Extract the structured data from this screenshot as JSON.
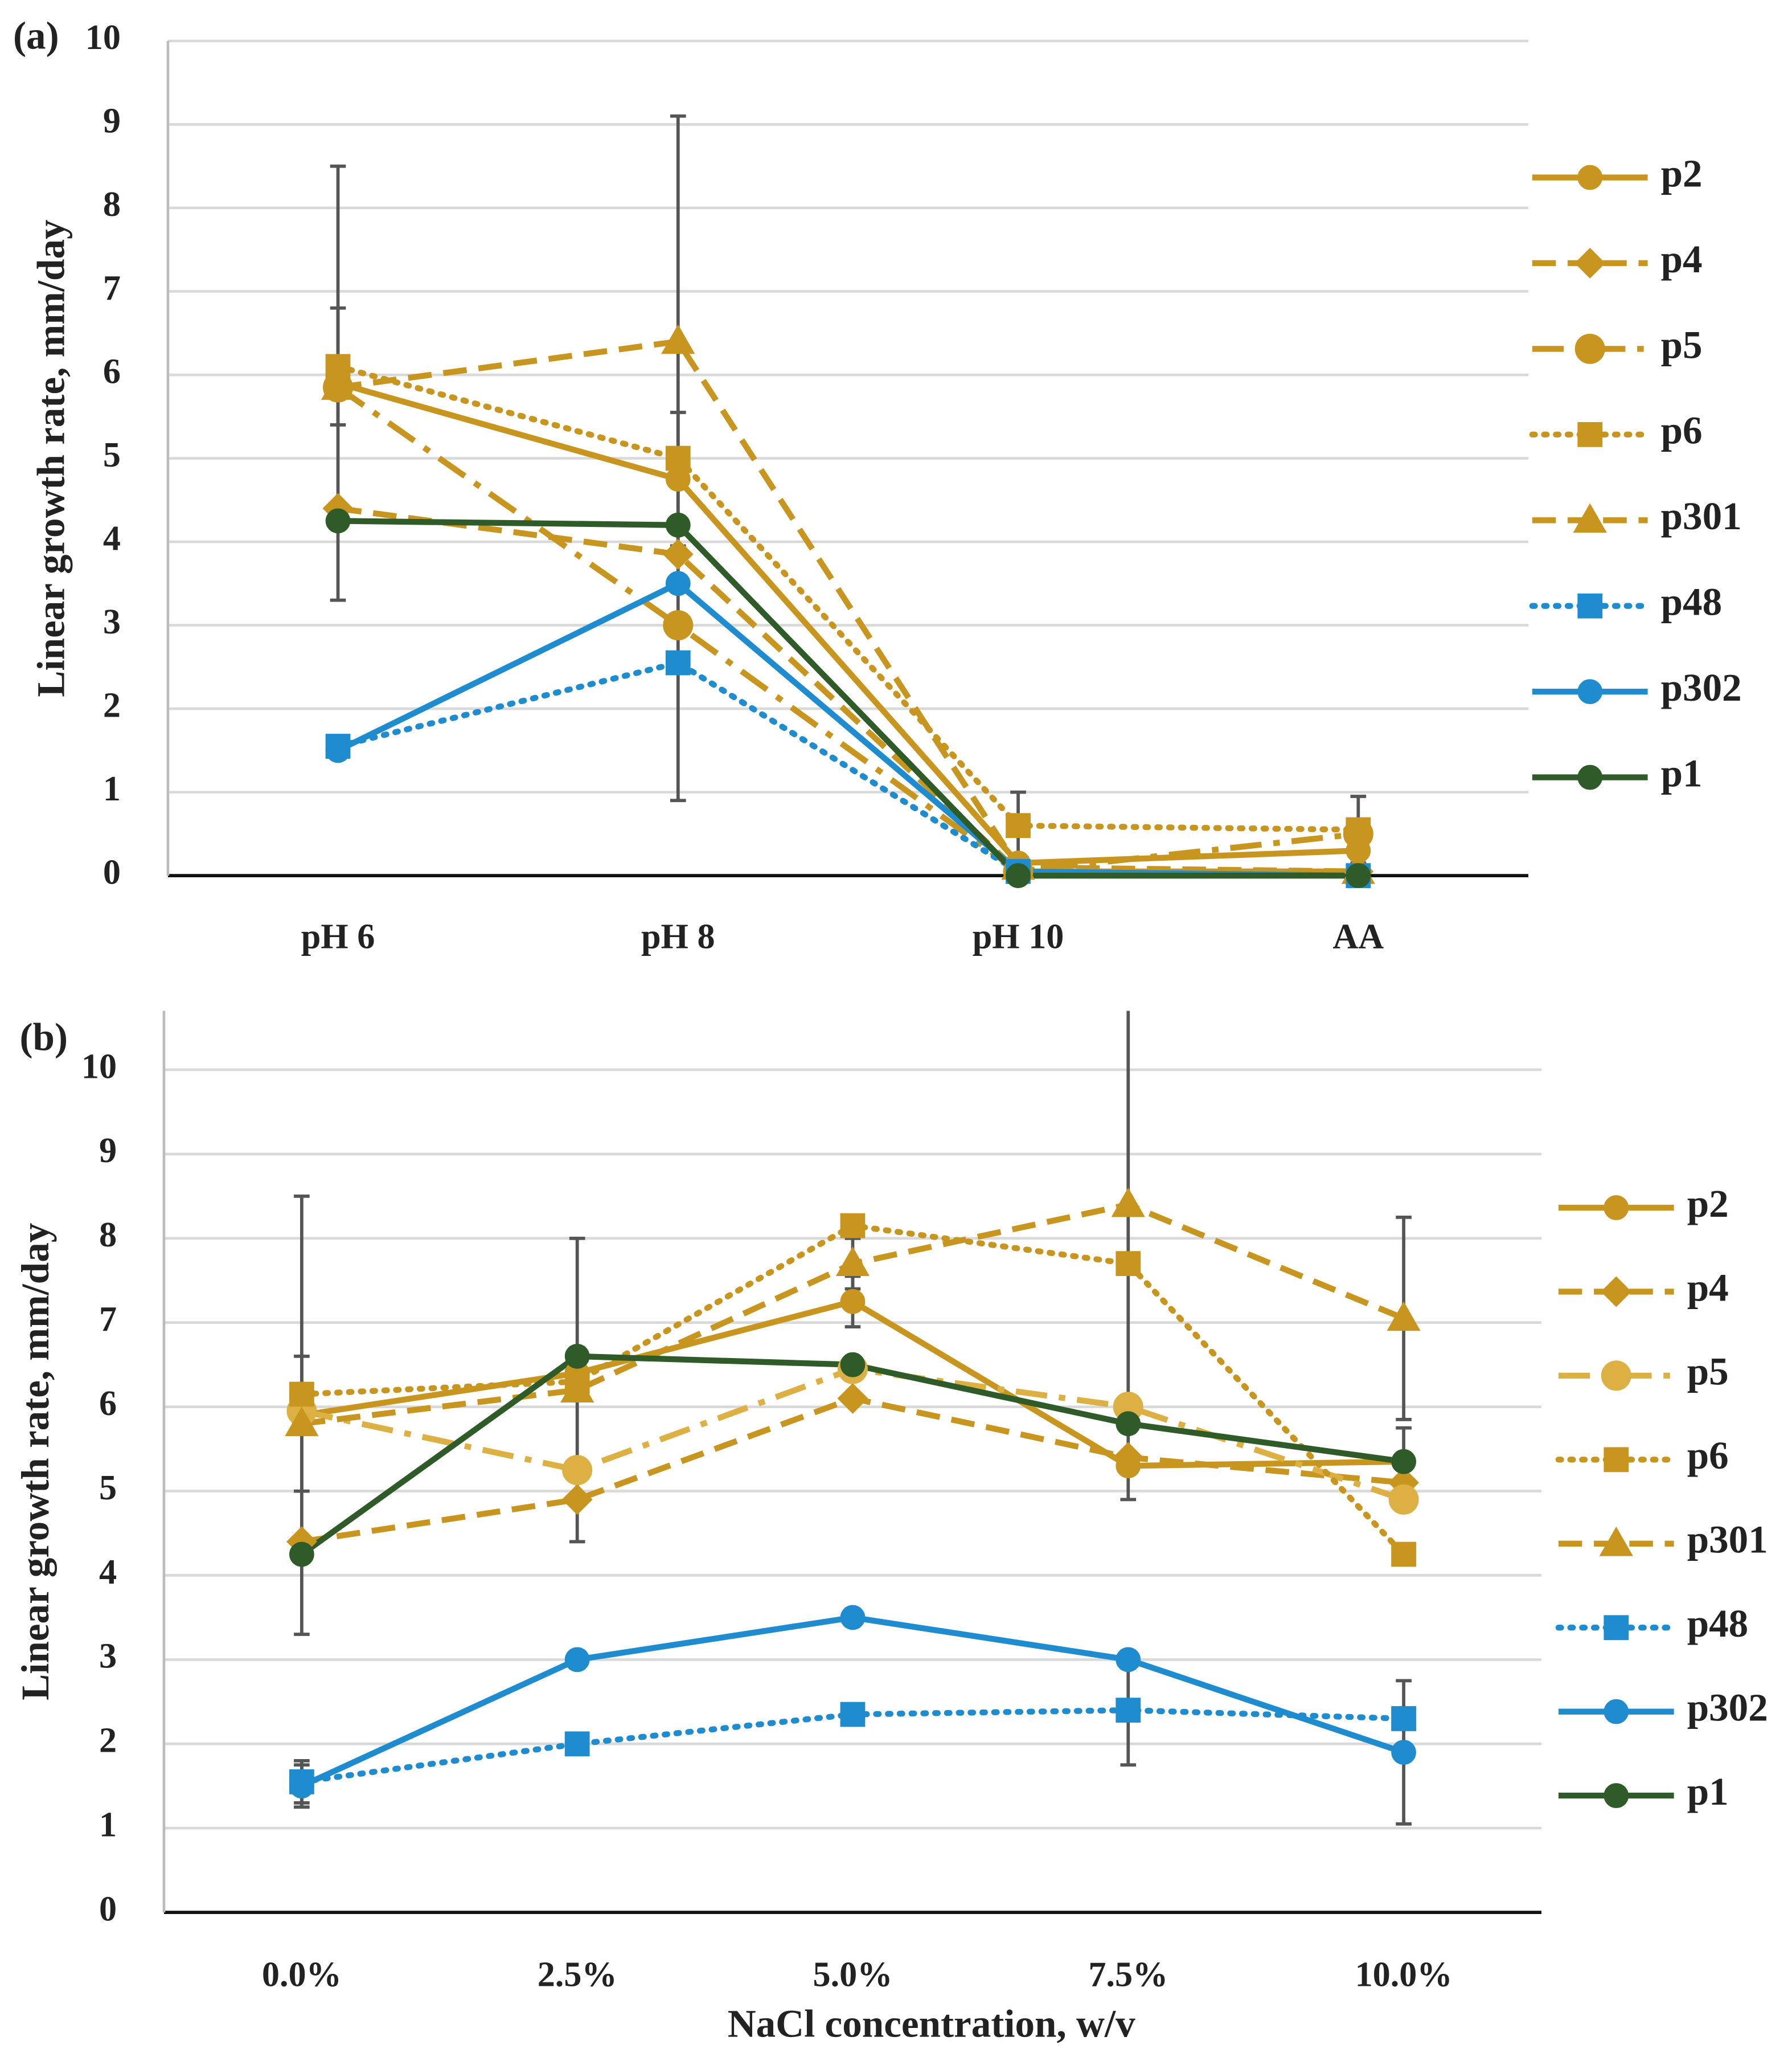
{
  "chart_data": [
    {
      "type": "line",
      "panel_label": "(a)",
      "ylabel": "Linear growth rate, mm/day",
      "categories": [
        "pH 6",
        "pH 8",
        "pH 10",
        "AA"
      ],
      "ylim": [
        0,
        10
      ],
      "yticks": [
        0,
        1,
        2,
        3,
        4,
        5,
        6,
        7,
        8,
        9,
        10
      ],
      "grid": true,
      "legend": "right",
      "series": [
        {
          "name": "p2",
          "color": "#c8951f",
          "dash": "solid",
          "marker": "circle",
          "values": [
            5.9,
            4.75,
            0.15,
            0.3
          ],
          "errors": [
            2.6,
            0.8,
            0.1,
            0.1
          ]
        },
        {
          "name": "p4",
          "color": "#c8951f",
          "dash": "dashed",
          "marker": "diamond",
          "values": [
            4.4,
            3.85,
            0.05,
            0.05
          ]
        },
        {
          "name": "p5",
          "color": "#c8951f",
          "dash": "dashdot",
          "marker": "bigcircle",
          "values": [
            5.85,
            3.0,
            0.05,
            0.5
          ]
        },
        {
          "name": "p6",
          "color": "#c8951f",
          "dash": "dotted",
          "marker": "square",
          "values": [
            6.1,
            5.0,
            0.6,
            0.55
          ],
          "errors": [
            0.7,
            4.1,
            0.4,
            0.4
          ]
        },
        {
          "name": "p301",
          "color": "#c8951f",
          "dash": "dashed",
          "marker": "triangle",
          "values": [
            5.85,
            6.4,
            0.1,
            0.05
          ]
        },
        {
          "name": "p48",
          "color": "#1e8ccf",
          "dash": "dotted",
          "marker": "square",
          "values": [
            1.55,
            2.55,
            0.05,
            0.0
          ]
        },
        {
          "name": "p302",
          "color": "#1e8ccf",
          "dash": "solid",
          "marker": "circle",
          "values": [
            1.5,
            3.5,
            0.05,
            0.0
          ]
        },
        {
          "name": "p1",
          "color": "#2e5b28",
          "dash": "solid",
          "marker": "circle",
          "values": [
            4.25,
            4.2,
            0.0,
            0.0
          ]
        }
      ]
    },
    {
      "type": "line",
      "panel_label": "(b)",
      "ylabel": "Linear growth rate, mm/day",
      "xlabel": "NaCl concentration, w/v",
      "categories": [
        "0.0%",
        "2.5%",
        "5.0%",
        "7.5%",
        "10.0%"
      ],
      "ylim": [
        0,
        10.7
      ],
      "yticks": [
        0,
        1,
        2,
        3,
        4,
        5,
        6,
        7,
        8,
        9,
        10
      ],
      "grid": true,
      "legend": "right",
      "series": [
        {
          "name": "p2",
          "color": "#c8951f",
          "dash": "solid",
          "marker": "circle",
          "values": [
            5.9,
            6.4,
            7.25,
            5.3,
            5.35
          ],
          "errors": [
            2.6,
            0.3,
            0.3,
            0.4,
            0.4
          ]
        },
        {
          "name": "p4",
          "color": "#c8951f",
          "dash": "dashed",
          "marker": "diamond",
          "values": [
            4.4,
            4.9,
            6.1,
            5.4,
            5.1
          ]
        },
        {
          "name": "p5",
          "color": "#ddb044",
          "dash": "dashdot",
          "marker": "bigcircle",
          "values": [
            5.95,
            5.25,
            6.45,
            6.0,
            4.9
          ]
        },
        {
          "name": "p6",
          "color": "#c8951f",
          "dash": "dotted",
          "marker": "square",
          "values": [
            6.15,
            6.3,
            8.15,
            7.7,
            4.25
          ]
        },
        {
          "name": "p301",
          "color": "#c8951f",
          "dash": "dashed",
          "marker": "triangle",
          "values": [
            5.8,
            6.2,
            7.7,
            8.4,
            7.05
          ],
          "errors": [
            0.8,
            1.8,
            0.3,
            2.4,
            1.2
          ]
        },
        {
          "name": "p48",
          "color": "#1e8ccf",
          "dash": "dotted",
          "marker": "square",
          "values": [
            1.55,
            2.0,
            2.35,
            2.4,
            2.3
          ],
          "errors": [
            0.25,
            0.1,
            0.1,
            0.65,
            0.1
          ]
        },
        {
          "name": "p302",
          "color": "#1e8ccf",
          "dash": "solid",
          "marker": "circle",
          "values": [
            1.5,
            3.0,
            3.5,
            3.0,
            1.9
          ],
          "errors": [
            0.25,
            0.1,
            0.1,
            0.1,
            0.85
          ]
        },
        {
          "name": "p1",
          "color": "#2e5b28",
          "dash": "solid",
          "marker": "circle",
          "values": [
            4.25,
            6.6,
            6.5,
            5.8,
            5.35
          ]
        }
      ]
    }
  ]
}
